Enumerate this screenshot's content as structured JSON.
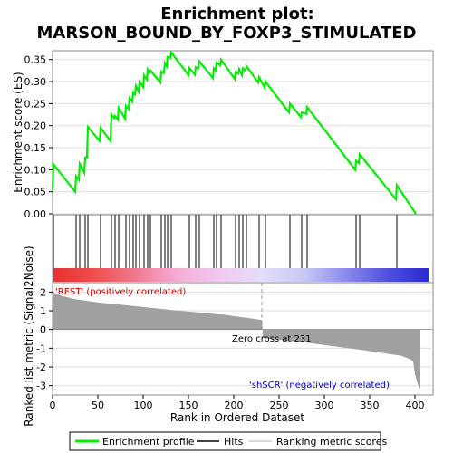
{
  "chart_data": {
    "type": "line",
    "title": "Enrichment plot:",
    "subtitle": "MARSON_BOUND_BY_FOXP3_STIMULATED",
    "top_panel": {
      "ylabel": "Enrichment score (ES)",
      "ylim": [
        0.0,
        0.37
      ],
      "yticks": [
        "0.00",
        "0.05",
        "0.10",
        "0.15",
        "0.20",
        "0.25",
        "0.30",
        "0.35"
      ],
      "series": [
        {
          "name": "Enrichment profile",
          "color": "#00ee00",
          "x": [
            0,
            1,
            25,
            26,
            29,
            30,
            35,
            36,
            38,
            39,
            52,
            53,
            64,
            65,
            68,
            69,
            72,
            73,
            80,
            81,
            84,
            85,
            88,
            89,
            91,
            92,
            95,
            96,
            100,
            101,
            104,
            105,
            107,
            108,
            119,
            120,
            123,
            124,
            126,
            127,
            130,
            131,
            150,
            151,
            157,
            158,
            161,
            162,
            177,
            178,
            180,
            181,
            185,
            186,
            201,
            202,
            205,
            206,
            209,
            210,
            213,
            214,
            227,
            228,
            234,
            235,
            261,
            262,
            274,
            275,
            280,
            281,
            334,
            335,
            338,
            339,
            379,
            380,
            401
          ],
          "y": [
            0.055,
            0.112,
            0.05,
            0.085,
            0.077,
            0.113,
            0.093,
            0.128,
            0.128,
            0.197,
            0.165,
            0.195,
            0.165,
            0.225,
            0.217,
            0.222,
            0.214,
            0.24,
            0.216,
            0.245,
            0.238,
            0.263,
            0.255,
            0.275,
            0.271,
            0.29,
            0.277,
            0.3,
            0.288,
            0.314,
            0.305,
            0.327,
            0.32,
            0.325,
            0.298,
            0.323,
            0.32,
            0.342,
            0.335,
            0.356,
            0.354,
            0.366,
            0.315,
            0.331,
            0.316,
            0.333,
            0.33,
            0.346,
            0.308,
            0.33,
            0.325,
            0.343,
            0.337,
            0.35,
            0.306,
            0.322,
            0.318,
            0.328,
            0.315,
            0.33,
            0.325,
            0.335,
            0.298,
            0.31,
            0.287,
            0.3,
            0.23,
            0.25,
            0.22,
            0.23,
            0.227,
            0.242,
            0.1,
            0.12,
            0.115,
            0.135,
            0.033,
            0.065,
            0.0
          ]
        }
      ]
    },
    "hits": [
      1,
      26,
      30,
      36,
      39,
      53,
      65,
      69,
      73,
      81,
      85,
      89,
      92,
      96,
      101,
      105,
      108,
      120,
      124,
      127,
      131,
      151,
      158,
      162,
      178,
      181,
      186,
      202,
      206,
      210,
      214,
      228,
      235,
      262,
      275,
      281,
      335,
      339,
      380
    ],
    "bottom_panel": {
      "ylabel": "Ranked list metric (Signal2Noise)",
      "xlabel": "Rank in Ordered Dataset",
      "ylim": [
        -3.5,
        2.5
      ],
      "yticks": [
        "2",
        "1",
        "0",
        "-1",
        "-2",
        "-3"
      ],
      "xlim": [
        0,
        420
      ],
      "xticks": [
        "0",
        "50",
        "100",
        "150",
        "200",
        "250",
        "300",
        "350",
        "400"
      ],
      "bar_color": "#a0a0a0",
      "metric_x": [
        0,
        2,
        10,
        25,
        50,
        80,
        100,
        130,
        160,
        190,
        215,
        231,
        232,
        250,
        280,
        310,
        340,
        370,
        385,
        395,
        398,
        400,
        403,
        406
      ],
      "metric_y": [
        2.05,
        1.95,
        1.8,
        1.62,
        1.45,
        1.3,
        1.2,
        1.05,
        0.92,
        0.78,
        0.62,
        0.5,
        -0.45,
        -0.55,
        -0.7,
        -0.9,
        -1.08,
        -1.3,
        -1.4,
        -1.6,
        -1.7,
        -2.4,
        -2.9,
        -3.2
      ],
      "zero_cross_label": "Zero cross at 231",
      "zero_cross": 231,
      "pos_label": "'REST' (positively correlated)",
      "neg_label": "'shSCR' (negatively correlated)"
    },
    "gradient_stops": [
      "#e83030",
      "#ee5050",
      "#f07a90",
      "#f4aed8",
      "#f2c8ee",
      "#e2def8",
      "#c8c8f4",
      "#8c8cee",
      "#5050dd",
      "#2a2ad0"
    ],
    "legend": {
      "items": [
        "Enrichment profile",
        "Hits",
        "Ranking metric scores"
      ],
      "colors": [
        "#00ee00",
        "#000000",
        "#cccccc"
      ]
    }
  }
}
